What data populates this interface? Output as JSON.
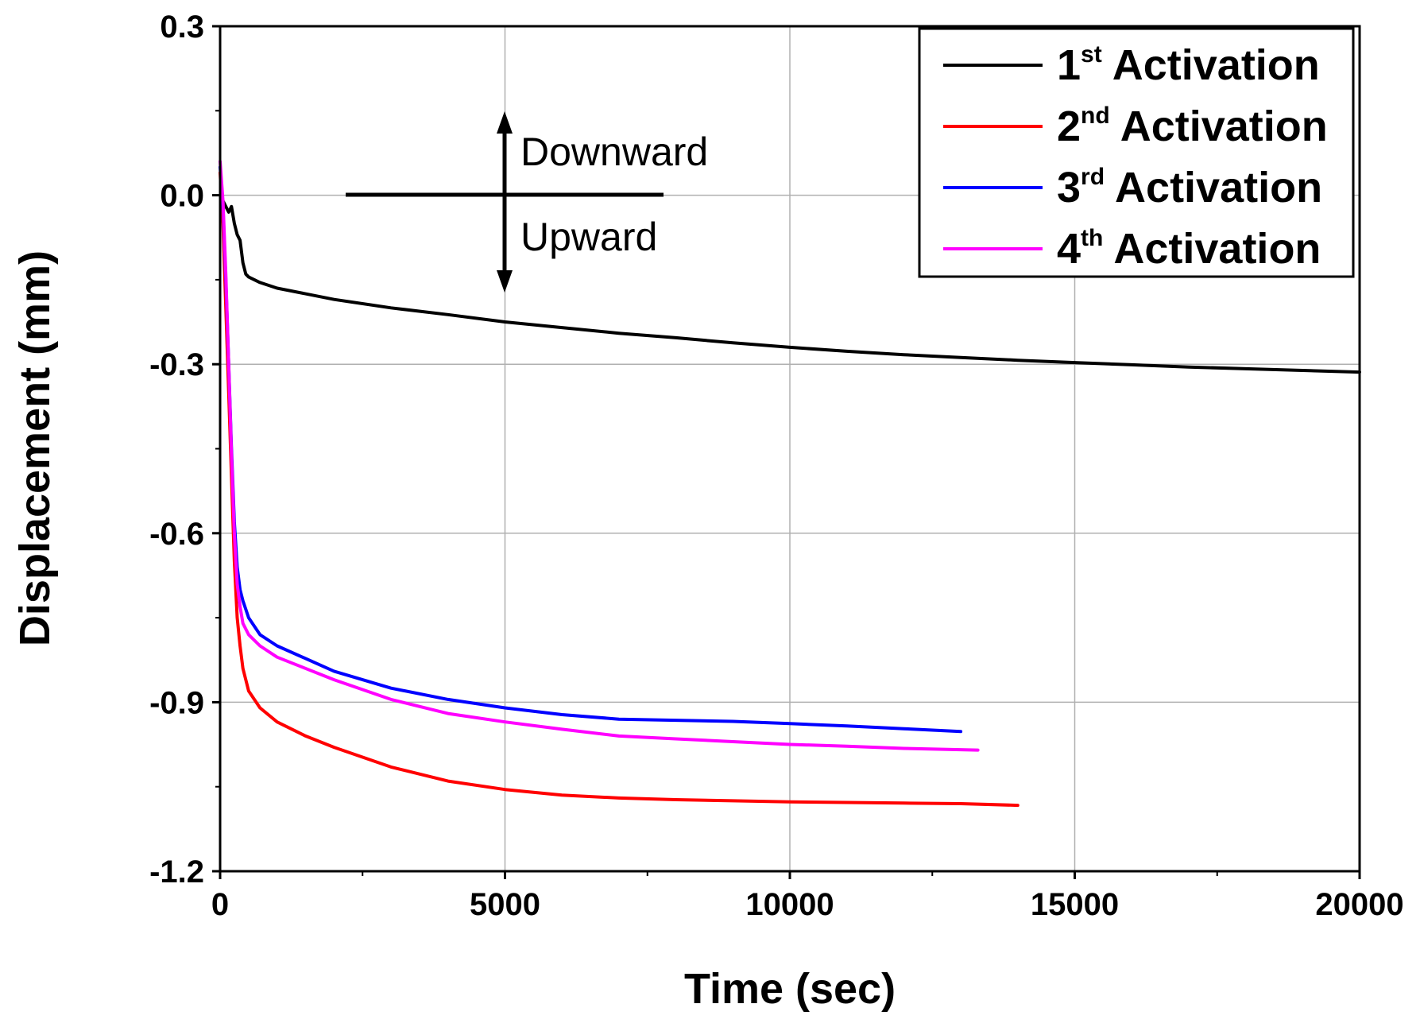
{
  "chart_data": {
    "type": "line",
    "title": "",
    "xlabel": "Time (sec)",
    "ylabel": "Displacement (mm)",
    "xlim": [
      0,
      20000
    ],
    "ylim": [
      -1.2,
      0.3
    ],
    "x_ticks": [
      0,
      5000,
      10000,
      15000,
      20000
    ],
    "x_tick_labels": [
      "0",
      "5000",
      "10000",
      "15000",
      "20000"
    ],
    "y_ticks": [
      0.3,
      0.0,
      -0.3,
      -0.6,
      -0.9,
      -1.2
    ],
    "y_tick_labels": [
      "0.3",
      "0.0",
      "-0.3",
      "-0.6",
      "-0.9",
      "-1.2"
    ],
    "grid": true,
    "legend_position": "top-right",
    "series": [
      {
        "name": "1st Activation",
        "label_main": "1",
        "label_sup": "st",
        "label_rest": " Activation",
        "color": "#000000",
        "x": [
          0,
          50,
          100,
          150,
          200,
          250,
          300,
          350,
          400,
          450,
          500,
          700,
          1000,
          2000,
          3000,
          4000,
          5000,
          6000,
          7000,
          8000,
          9000,
          10000,
          11000,
          12000,
          13000,
          14000,
          15000,
          16000,
          17000,
          18000,
          19000,
          20000
        ],
        "y": [
          0.0,
          -0.01,
          -0.02,
          -0.03,
          -0.02,
          -0.05,
          -0.07,
          -0.08,
          -0.12,
          -0.14,
          -0.145,
          -0.155,
          -0.165,
          -0.185,
          -0.2,
          -0.212,
          -0.225,
          -0.235,
          -0.245,
          -0.253,
          -0.262,
          -0.27,
          -0.277,
          -0.283,
          -0.288,
          -0.293,
          -0.297,
          -0.301,
          -0.305,
          -0.308,
          -0.311,
          -0.314
        ]
      },
      {
        "name": "2nd Activation",
        "label_main": "2",
        "label_sup": "nd",
        "label_rest": " Activation",
        "color": "#ff0000",
        "x": [
          0,
          50,
          100,
          150,
          200,
          250,
          300,
          350,
          400,
          500,
          700,
          1000,
          1500,
          2000,
          3000,
          4000,
          5000,
          6000,
          7000,
          8000,
          9000,
          10000,
          11000,
          12000,
          13000,
          14000
        ],
        "y": [
          0.04,
          -0.05,
          -0.2,
          -0.35,
          -0.5,
          -0.65,
          -0.75,
          -0.8,
          -0.84,
          -0.88,
          -0.91,
          -0.935,
          -0.96,
          -0.98,
          -1.015,
          -1.04,
          -1.055,
          -1.065,
          -1.07,
          -1.073,
          -1.075,
          -1.077,
          -1.078,
          -1.079,
          -1.08,
          -1.083
        ]
      },
      {
        "name": "3rd Activation",
        "label_main": "3",
        "label_sup": "rd",
        "label_rest": " Activation",
        "color": "#0000ff",
        "x": [
          0,
          50,
          100,
          150,
          200,
          250,
          300,
          350,
          400,
          500,
          700,
          1000,
          2000,
          3000,
          4000,
          5000,
          6000,
          7000,
          8000,
          9000,
          10000,
          11000,
          12000,
          13000
        ],
        "y": [
          0.05,
          -0.02,
          -0.15,
          -0.3,
          -0.45,
          -0.58,
          -0.66,
          -0.7,
          -0.72,
          -0.75,
          -0.78,
          -0.8,
          -0.845,
          -0.875,
          -0.895,
          -0.91,
          -0.922,
          -0.93,
          -0.932,
          -0.934,
          -0.938,
          -0.942,
          -0.947,
          -0.952
        ]
      },
      {
        "name": "4th Activation",
        "label_main": "4",
        "label_sup": "th",
        "label_rest": " Activation",
        "color": "#ff00ff",
        "x": [
          0,
          50,
          100,
          150,
          200,
          250,
          300,
          350,
          400,
          500,
          700,
          1000,
          2000,
          3000,
          4000,
          5000,
          6000,
          7000,
          8000,
          9000,
          10000,
          11000,
          12000,
          13300
        ],
        "y": [
          0.06,
          -0.01,
          -0.14,
          -0.3,
          -0.46,
          -0.6,
          -0.69,
          -0.73,
          -0.76,
          -0.78,
          -0.8,
          -0.82,
          -0.86,
          -0.895,
          -0.92,
          -0.935,
          -0.948,
          -0.96,
          -0.965,
          -0.97,
          -0.975,
          -0.978,
          -0.982,
          -0.985
        ]
      }
    ],
    "annotations": {
      "downward": "Downward",
      "upward": "Upward"
    }
  }
}
